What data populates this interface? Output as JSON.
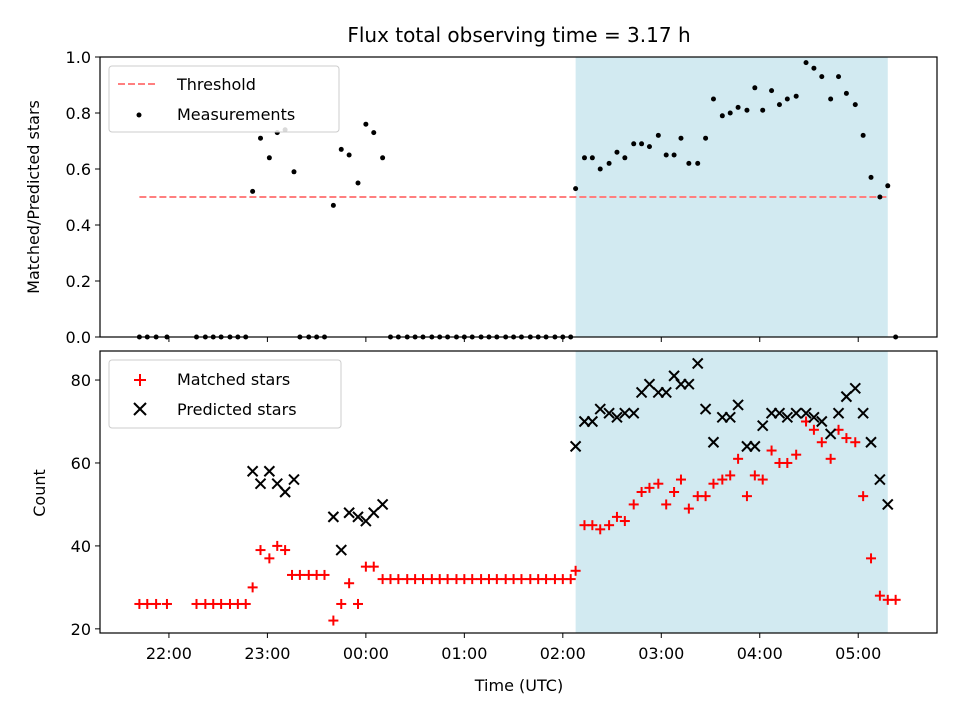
{
  "title": "Flux total observing time = 3.17 h",
  "colors": {
    "threshold": "#ff7f7f",
    "measurements": "#000000",
    "matched": "#ff0000",
    "predicted": "#000000",
    "shade": "#add8e6"
  },
  "chart_data": [
    {
      "type": "scatter",
      "ylabel": "Matched/Predicted stars",
      "ylim": [
        0,
        1.0
      ],
      "yticks": [
        "0.0",
        "0.2",
        "0.4",
        "0.6",
        "0.8",
        "1.0"
      ],
      "xlim_hours": [
        -2.7,
        5.8
      ],
      "shaded_span_hours": [
        2.13,
        5.3
      ],
      "legend_position": "upper left",
      "legend": {
        "threshold": "Threshold",
        "measurements": "Measurements"
      },
      "threshold": {
        "value": 0.5,
        "x_hours": [
          -2.3,
          5.3
        ]
      },
      "measurements": [
        [
          -2.3,
          0
        ],
        [
          -2.22,
          0
        ],
        [
          -2.13,
          0
        ],
        [
          -2.02,
          0
        ],
        [
          -1.72,
          0
        ],
        [
          -1.63,
          0
        ],
        [
          -1.55,
          0
        ],
        [
          -1.47,
          0
        ],
        [
          -1.38,
          0
        ],
        [
          -1.3,
          0
        ],
        [
          -1.22,
          0
        ],
        [
          -1.15,
          0.52
        ],
        [
          -1.07,
          0.71
        ],
        [
          -0.98,
          0.64
        ],
        [
          -0.9,
          0.73
        ],
        [
          -0.82,
          0.74
        ],
        [
          -0.73,
          0.59
        ],
        [
          -0.67,
          0
        ],
        [
          -0.58,
          0
        ],
        [
          -0.5,
          0
        ],
        [
          -0.42,
          0
        ],
        [
          -0.33,
          0.47
        ],
        [
          -0.25,
          0.67
        ],
        [
          -0.17,
          0.65
        ],
        [
          -0.08,
          0.55
        ],
        [
          0,
          0.76
        ],
        [
          0.08,
          0.73
        ],
        [
          0.17,
          0.64
        ],
        [
          0.25,
          0
        ],
        [
          0.33,
          0
        ],
        [
          0.42,
          0
        ],
        [
          0.5,
          0
        ],
        [
          0.58,
          0
        ],
        [
          0.67,
          0
        ],
        [
          0.75,
          0
        ],
        [
          0.83,
          0
        ],
        [
          0.92,
          0
        ],
        [
          1.0,
          0
        ],
        [
          1.08,
          0
        ],
        [
          1.17,
          0
        ],
        [
          1.25,
          0
        ],
        [
          1.33,
          0
        ],
        [
          1.42,
          0
        ],
        [
          1.5,
          0
        ],
        [
          1.58,
          0
        ],
        [
          1.67,
          0
        ],
        [
          1.75,
          0
        ],
        [
          1.83,
          0
        ],
        [
          1.92,
          0
        ],
        [
          2.0,
          0
        ],
        [
          2.08,
          0
        ],
        [
          2.13,
          0.53
        ],
        [
          2.22,
          0.64
        ],
        [
          2.3,
          0.64
        ],
        [
          2.38,
          0.6
        ],
        [
          2.47,
          0.62
        ],
        [
          2.55,
          0.66
        ],
        [
          2.63,
          0.64
        ],
        [
          2.72,
          0.69
        ],
        [
          2.8,
          0.69
        ],
        [
          2.88,
          0.68
        ],
        [
          2.97,
          0.72
        ],
        [
          3.05,
          0.65
        ],
        [
          3.13,
          0.65
        ],
        [
          3.2,
          0.71
        ],
        [
          3.28,
          0.62
        ],
        [
          3.37,
          0.62
        ],
        [
          3.45,
          0.71
        ],
        [
          3.53,
          0.85
        ],
        [
          3.62,
          0.79
        ],
        [
          3.7,
          0.8
        ],
        [
          3.78,
          0.82
        ],
        [
          3.87,
          0.81
        ],
        [
          3.95,
          0.89
        ],
        [
          4.03,
          0.81
        ],
        [
          4.12,
          0.88
        ],
        [
          4.2,
          0.83
        ],
        [
          4.28,
          0.85
        ],
        [
          4.37,
          0.86
        ],
        [
          4.47,
          0.98
        ],
        [
          4.55,
          0.96
        ],
        [
          4.63,
          0.93
        ],
        [
          4.72,
          0.85
        ],
        [
          4.8,
          0.93
        ],
        [
          4.88,
          0.87
        ],
        [
          4.97,
          0.83
        ],
        [
          5.05,
          0.72
        ],
        [
          5.13,
          0.57
        ],
        [
          5.22,
          0.5
        ],
        [
          5.3,
          0.54
        ],
        [
          5.38,
          0
        ]
      ]
    },
    {
      "type": "scatter",
      "xlabel": "Time (UTC)",
      "ylabel": "Count",
      "ylim": [
        19,
        87
      ],
      "yticks": [
        "20",
        "40",
        "60",
        "80"
      ],
      "xticks": [
        "22:00",
        "23:00",
        "00:00",
        "01:00",
        "02:00",
        "03:00",
        "04:00",
        "05:00"
      ],
      "xlim_hours": [
        -2.7,
        5.8
      ],
      "shaded_span_hours": [
        2.13,
        5.3
      ],
      "legend_position": "upper left",
      "legend": {
        "matched": "Matched stars",
        "predicted": "Predicted stars"
      },
      "series": [
        {
          "name": "Matched stars",
          "marker": "plus",
          "points": [
            [
              -2.3,
              26
            ],
            [
              -2.22,
              26
            ],
            [
              -2.13,
              26
            ],
            [
              -2.02,
              26
            ],
            [
              -1.72,
              26
            ],
            [
              -1.63,
              26
            ],
            [
              -1.55,
              26
            ],
            [
              -1.47,
              26
            ],
            [
              -1.38,
              26
            ],
            [
              -1.3,
              26
            ],
            [
              -1.22,
              26
            ],
            [
              -1.15,
              30
            ],
            [
              -1.07,
              39
            ],
            [
              -0.98,
              37
            ],
            [
              -0.9,
              40
            ],
            [
              -0.82,
              39
            ],
            [
              -0.75,
              33
            ],
            [
              -0.67,
              33
            ],
            [
              -0.58,
              33
            ],
            [
              -0.5,
              33
            ],
            [
              -0.42,
              33
            ],
            [
              -0.33,
              22
            ],
            [
              -0.25,
              26
            ],
            [
              -0.17,
              31
            ],
            [
              -0.08,
              26
            ],
            [
              0,
              35
            ],
            [
              0.08,
              35
            ],
            [
              0.17,
              32
            ],
            [
              0.25,
              32
            ],
            [
              0.33,
              32
            ],
            [
              0.42,
              32
            ],
            [
              0.5,
              32
            ],
            [
              0.58,
              32
            ],
            [
              0.67,
              32
            ],
            [
              0.75,
              32
            ],
            [
              0.83,
              32
            ],
            [
              0.92,
              32
            ],
            [
              1.0,
              32
            ],
            [
              1.08,
              32
            ],
            [
              1.17,
              32
            ],
            [
              1.25,
              32
            ],
            [
              1.33,
              32
            ],
            [
              1.42,
              32
            ],
            [
              1.5,
              32
            ],
            [
              1.58,
              32
            ],
            [
              1.67,
              32
            ],
            [
              1.75,
              32
            ],
            [
              1.83,
              32
            ],
            [
              1.92,
              32
            ],
            [
              2.0,
              32
            ],
            [
              2.08,
              32
            ],
            [
              2.13,
              34
            ],
            [
              2.22,
              45
            ],
            [
              2.3,
              45
            ],
            [
              2.38,
              44
            ],
            [
              2.47,
              45
            ],
            [
              2.55,
              47
            ],
            [
              2.63,
              46
            ],
            [
              2.72,
              50
            ],
            [
              2.8,
              53
            ],
            [
              2.88,
              54
            ],
            [
              2.97,
              55
            ],
            [
              3.05,
              50
            ],
            [
              3.13,
              53
            ],
            [
              3.2,
              56
            ],
            [
              3.28,
              49
            ],
            [
              3.37,
              52
            ],
            [
              3.45,
              52
            ],
            [
              3.53,
              55
            ],
            [
              3.62,
              56
            ],
            [
              3.7,
              57
            ],
            [
              3.78,
              61
            ],
            [
              3.87,
              52
            ],
            [
              3.95,
              57
            ],
            [
              4.03,
              56
            ],
            [
              4.12,
              63
            ],
            [
              4.2,
              60
            ],
            [
              4.28,
              60
            ],
            [
              4.37,
              62
            ],
            [
              4.47,
              70
            ],
            [
              4.55,
              68
            ],
            [
              4.63,
              65
            ],
            [
              4.72,
              61
            ],
            [
              4.8,
              68
            ],
            [
              4.88,
              66
            ],
            [
              4.97,
              65
            ],
            [
              5.05,
              52
            ],
            [
              5.13,
              37
            ],
            [
              5.22,
              28
            ],
            [
              5.3,
              27
            ],
            [
              5.38,
              27
            ]
          ]
        },
        {
          "name": "Predicted stars",
          "marker": "x",
          "points": [
            [
              -1.15,
              58
            ],
            [
              -1.07,
              55
            ],
            [
              -0.98,
              58
            ],
            [
              -0.9,
              55
            ],
            [
              -0.82,
              53
            ],
            [
              -0.73,
              56
            ],
            [
              -0.33,
              47
            ],
            [
              -0.25,
              39
            ],
            [
              -0.17,
              48
            ],
            [
              -0.08,
              47
            ],
            [
              0,
              46
            ],
            [
              0.08,
              48
            ],
            [
              0.17,
              50
            ],
            [
              2.13,
              64
            ],
            [
              2.22,
              70
            ],
            [
              2.3,
              70
            ],
            [
              2.38,
              73
            ],
            [
              2.47,
              72
            ],
            [
              2.55,
              71
            ],
            [
              2.63,
              72
            ],
            [
              2.72,
              72
            ],
            [
              2.8,
              77
            ],
            [
              2.88,
              79
            ],
            [
              2.97,
              77
            ],
            [
              3.05,
              77
            ],
            [
              3.13,
              81
            ],
            [
              3.2,
              79
            ],
            [
              3.28,
              79
            ],
            [
              3.37,
              84
            ],
            [
              3.45,
              73
            ],
            [
              3.53,
              65
            ],
            [
              3.62,
              71
            ],
            [
              3.7,
              71
            ],
            [
              3.78,
              74
            ],
            [
              3.87,
              64
            ],
            [
              3.95,
              64
            ],
            [
              4.03,
              69
            ],
            [
              4.12,
              72
            ],
            [
              4.2,
              72
            ],
            [
              4.28,
              71
            ],
            [
              4.37,
              72
            ],
            [
              4.47,
              72
            ],
            [
              4.55,
              71
            ],
            [
              4.63,
              70
            ],
            [
              4.72,
              67
            ],
            [
              4.8,
              72
            ],
            [
              4.88,
              76
            ],
            [
              4.97,
              78
            ],
            [
              5.05,
              72
            ],
            [
              5.13,
              65
            ],
            [
              5.22,
              56
            ],
            [
              5.3,
              50
            ]
          ]
        }
      ]
    }
  ]
}
